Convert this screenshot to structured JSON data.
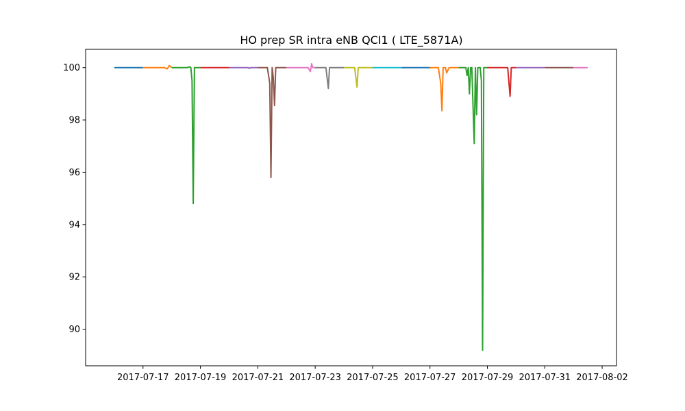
{
  "chart_data": {
    "type": "line",
    "title": "HO prep SR intra eNB QCI1 ( LTE_5871A)",
    "xlabel": "",
    "ylabel": "",
    "xlim": [
      "2017-07-15T00:00",
      "2017-08-02T12:00"
    ],
    "ylim": [
      88.6,
      100.7
    ],
    "x_ticks": [
      "2017-07-17",
      "2017-07-19",
      "2017-07-21",
      "2017-07-23",
      "2017-07-25",
      "2017-07-27",
      "2017-07-29",
      "2017-07-31",
      "2017-08-02"
    ],
    "y_ticks": [
      "90",
      "92",
      "94",
      "96",
      "98",
      "100"
    ],
    "grid": false,
    "legend": "none",
    "series": [
      {
        "color": "#1f77b4",
        "points": [
          [
            "2017-07-16T00:00",
            100
          ],
          [
            "2017-07-17T00:00",
            100
          ]
        ]
      },
      {
        "color": "#ff7f0e",
        "points": [
          [
            "2017-07-17T00:00",
            100
          ],
          [
            "2017-07-17T18:00",
            100
          ],
          [
            "2017-07-17T20:00",
            99.95
          ],
          [
            "2017-07-17T21:00",
            100
          ],
          [
            "2017-07-17T22:00",
            100.08
          ],
          [
            "2017-07-18T00:00",
            100
          ]
        ]
      },
      {
        "color": "#2ca02c",
        "points": [
          [
            "2017-07-18T00:00",
            100
          ],
          [
            "2017-07-18T13:00",
            100
          ],
          [
            "2017-07-18T15:00",
            100.03
          ],
          [
            "2017-07-18T16:00",
            100
          ],
          [
            "2017-07-18T17:00",
            99.5
          ],
          [
            "2017-07-18T18:00",
            94.8
          ],
          [
            "2017-07-18T19:00",
            100
          ],
          [
            "2017-07-19T00:00",
            100
          ]
        ]
      },
      {
        "color": "#d62728",
        "points": [
          [
            "2017-07-19T00:00",
            100
          ],
          [
            "2017-07-20T00:00",
            100
          ]
        ]
      },
      {
        "color": "#9467bd",
        "points": [
          [
            "2017-07-20T00:00",
            100
          ],
          [
            "2017-07-20T16:00",
            100
          ],
          [
            "2017-07-20T17:00",
            99.97
          ],
          [
            "2017-07-20T18:00",
            100
          ],
          [
            "2017-07-21T00:00",
            100
          ]
        ]
      },
      {
        "color": "#8c564b",
        "points": [
          [
            "2017-07-21T00:00",
            100
          ],
          [
            "2017-07-21T08:00",
            100
          ],
          [
            "2017-07-21T10:00",
            99.4
          ],
          [
            "2017-07-21T11:00",
            95.8
          ],
          [
            "2017-07-21T12:00",
            100
          ],
          [
            "2017-07-21T13:00",
            99.6
          ],
          [
            "2017-07-21T14:00",
            98.55
          ],
          [
            "2017-07-21T15:00",
            100
          ],
          [
            "2017-07-22T00:00",
            100
          ]
        ]
      },
      {
        "color": "#e377c2",
        "points": [
          [
            "2017-07-22T00:00",
            100
          ],
          [
            "2017-07-22T18:00",
            100
          ],
          [
            "2017-07-22T20:00",
            99.85
          ],
          [
            "2017-07-22T21:00",
            100.15
          ],
          [
            "2017-07-22T22:00",
            100
          ],
          [
            "2017-07-23T00:00",
            100
          ]
        ]
      },
      {
        "color": "#7f7f7f",
        "points": [
          [
            "2017-07-23T00:00",
            100
          ],
          [
            "2017-07-23T09:00",
            100
          ],
          [
            "2017-07-23T11:00",
            99.2
          ],
          [
            "2017-07-23T12:00",
            100
          ],
          [
            "2017-07-24T00:00",
            100
          ]
        ]
      },
      {
        "color": "#bcbd22",
        "points": [
          [
            "2017-07-24T00:00",
            100
          ],
          [
            "2017-07-24T09:00",
            100
          ],
          [
            "2017-07-24T11:00",
            99.25
          ],
          [
            "2017-07-24T12:00",
            100
          ],
          [
            "2017-07-25T00:00",
            100
          ]
        ]
      },
      {
        "color": "#17becf",
        "points": [
          [
            "2017-07-25T00:00",
            100
          ],
          [
            "2017-07-26T00:00",
            100
          ]
        ]
      },
      {
        "color": "#1f77b4",
        "points": [
          [
            "2017-07-26T00:00",
            100
          ],
          [
            "2017-07-27T00:00",
            100
          ]
        ]
      },
      {
        "color": "#ff7f0e",
        "points": [
          [
            "2017-07-27T00:00",
            100
          ],
          [
            "2017-07-27T07:00",
            100
          ],
          [
            "2017-07-27T09:00",
            99.4
          ],
          [
            "2017-07-27T10:00",
            98.35
          ],
          [
            "2017-07-27T11:00",
            100
          ],
          [
            "2017-07-27T13:00",
            100
          ],
          [
            "2017-07-27T14:00",
            99.8
          ],
          [
            "2017-07-27T16:00",
            100
          ],
          [
            "2017-07-28T00:00",
            100
          ]
        ]
      },
      {
        "color": "#2ca02c",
        "points": [
          [
            "2017-07-28T00:00",
            100
          ],
          [
            "2017-07-28T06:00",
            100
          ],
          [
            "2017-07-28T07:00",
            99.7
          ],
          [
            "2017-07-28T08:00",
            100
          ],
          [
            "2017-07-28T09:00",
            99.0
          ],
          [
            "2017-07-28T10:00",
            100
          ],
          [
            "2017-07-28T11:00",
            100
          ],
          [
            "2017-07-28T13:00",
            97.1
          ],
          [
            "2017-07-28T14:00",
            100
          ],
          [
            "2017-07-28T15:00",
            98.2
          ],
          [
            "2017-07-28T16:00",
            100
          ],
          [
            "2017-07-28T18:00",
            100
          ],
          [
            "2017-07-28T19:00",
            99.5
          ],
          [
            "2017-07-28T20:00",
            89.2
          ],
          [
            "2017-07-28T21:00",
            100
          ],
          [
            "2017-07-29T00:00",
            100
          ]
        ]
      },
      {
        "color": "#d62728",
        "points": [
          [
            "2017-07-29T00:00",
            100
          ],
          [
            "2017-07-29T17:00",
            100
          ],
          [
            "2017-07-29T19:00",
            98.9
          ],
          [
            "2017-07-29T20:00",
            100
          ],
          [
            "2017-07-30T00:00",
            100
          ]
        ]
      },
      {
        "color": "#9467bd",
        "points": [
          [
            "2017-07-30T00:00",
            100
          ],
          [
            "2017-07-31T00:00",
            100
          ]
        ]
      },
      {
        "color": "#8c564b",
        "points": [
          [
            "2017-07-31T00:00",
            100
          ],
          [
            "2017-08-01T00:00",
            100
          ]
        ]
      },
      {
        "color": "#e377c2",
        "points": [
          [
            "2017-08-01T00:00",
            100
          ],
          [
            "2017-08-01T12:00",
            100
          ]
        ]
      }
    ]
  }
}
